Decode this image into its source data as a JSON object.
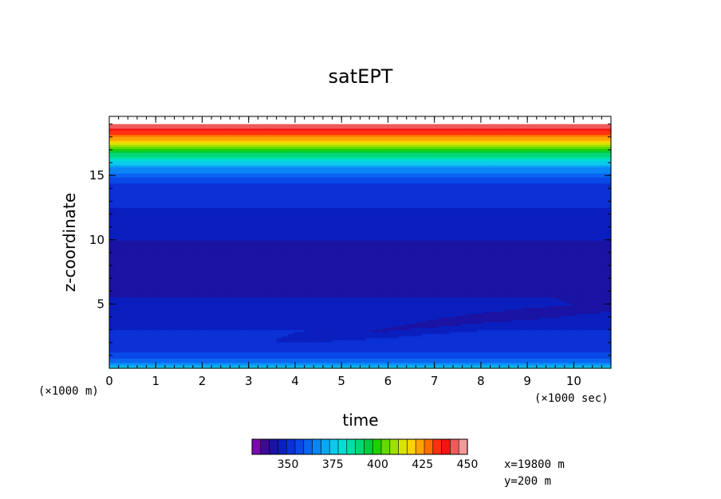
{
  "chart_data": {
    "type": "heatmap",
    "title": "satEPT",
    "xlabel": "time",
    "ylabel": "z-coordinate",
    "x_unit_label": "(×1000 sec)",
    "y_unit_label": "(×1000 m)",
    "xlim": [
      0,
      10.8
    ],
    "ylim": [
      0,
      19.6
    ],
    "x_ticks": [
      0,
      1,
      2,
      3,
      4,
      5,
      6,
      7,
      8,
      9,
      10
    ],
    "y_ticks": [
      5,
      10,
      15
    ],
    "colorbar": {
      "min": 330,
      "max": 450,
      "step": 5,
      "labels": [
        350,
        375,
        400,
        425,
        450
      ],
      "colors": [
        "#7a0bb0",
        "#3d0a99",
        "#1a13a3",
        "#0b1fbf",
        "#0a30d6",
        "#0a48e8",
        "#0a66f2",
        "#0a86f5",
        "#0aa7f2",
        "#0bcaeb",
        "#00dfd2",
        "#00dfa8",
        "#00d878",
        "#00cc3e",
        "#1fd000",
        "#62da00",
        "#9ee000",
        "#d8e400",
        "#ffd200",
        "#ffa300",
        "#ff6e00",
        "#ff3010",
        "#f01515",
        "#f05a5a",
        "#f59a9a"
      ]
    },
    "annotations": [
      "x=19800 m",
      "y=200 m"
    ],
    "grid": false,
    "field": {
      "x_samples": [
        0,
        1,
        2,
        3,
        4,
        5,
        6,
        7,
        8,
        9,
        10,
        10.8
      ],
      "z_samples": [
        0,
        0.3,
        0.6,
        1,
        1.5,
        2,
        2.5,
        3,
        3.5,
        4,
        4.5,
        5,
        5.5,
        6,
        6.5,
        7,
        7.5,
        8,
        8.5,
        9,
        9.5,
        10,
        10.5,
        11,
        11.5,
        12,
        12.5,
        13,
        13.5,
        14,
        14.5,
        15,
        15.5,
        16,
        16.5,
        17,
        17.5,
        18,
        18.5,
        19
      ],
      "profile": [
        378,
        372,
        363,
        357,
        354,
        352,
        351,
        350,
        349,
        348,
        348,
        349,
        345,
        344,
        344,
        343,
        344,
        344,
        344,
        344,
        344,
        345,
        347,
        348,
        348,
        348,
        350,
        351,
        351,
        352,
        356,
        362,
        368,
        378,
        390,
        402,
        418,
        430,
        440,
        450
      ],
      "dip_center_start": [
        3.0,
        1.8
      ],
      "dip_center_end": [
        10.8,
        5.0
      ],
      "dip_depth": 6
    }
  }
}
